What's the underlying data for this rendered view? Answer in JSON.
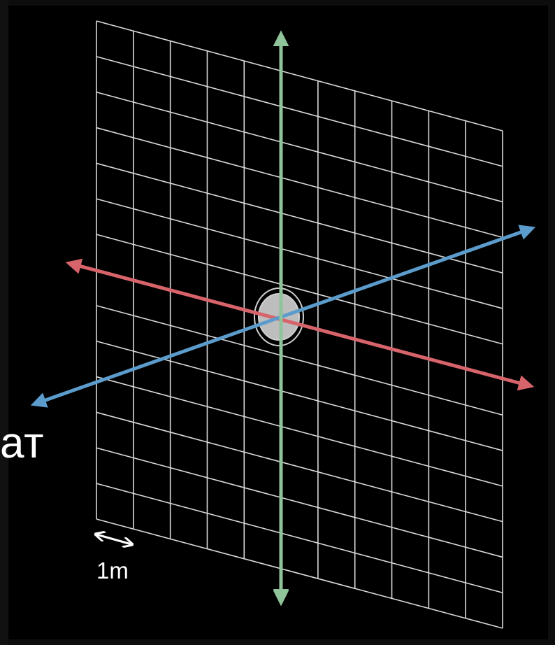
{
  "diagram": {
    "fragment_text": "ат",
    "scale_label": "1m",
    "colors": {
      "background": "#000000",
      "frame": "#0d0d0d",
      "grid": "#d9d9d9",
      "x_axis": "#d8646b",
      "y_axis": "#8fc49a",
      "z_axis": "#5b9ccc",
      "origin_fill": "#bdbdbd",
      "origin_ring": "#d0d0d0",
      "text": "#ffffff"
    },
    "grid": {
      "columns": 11,
      "rows": 14
    }
  }
}
